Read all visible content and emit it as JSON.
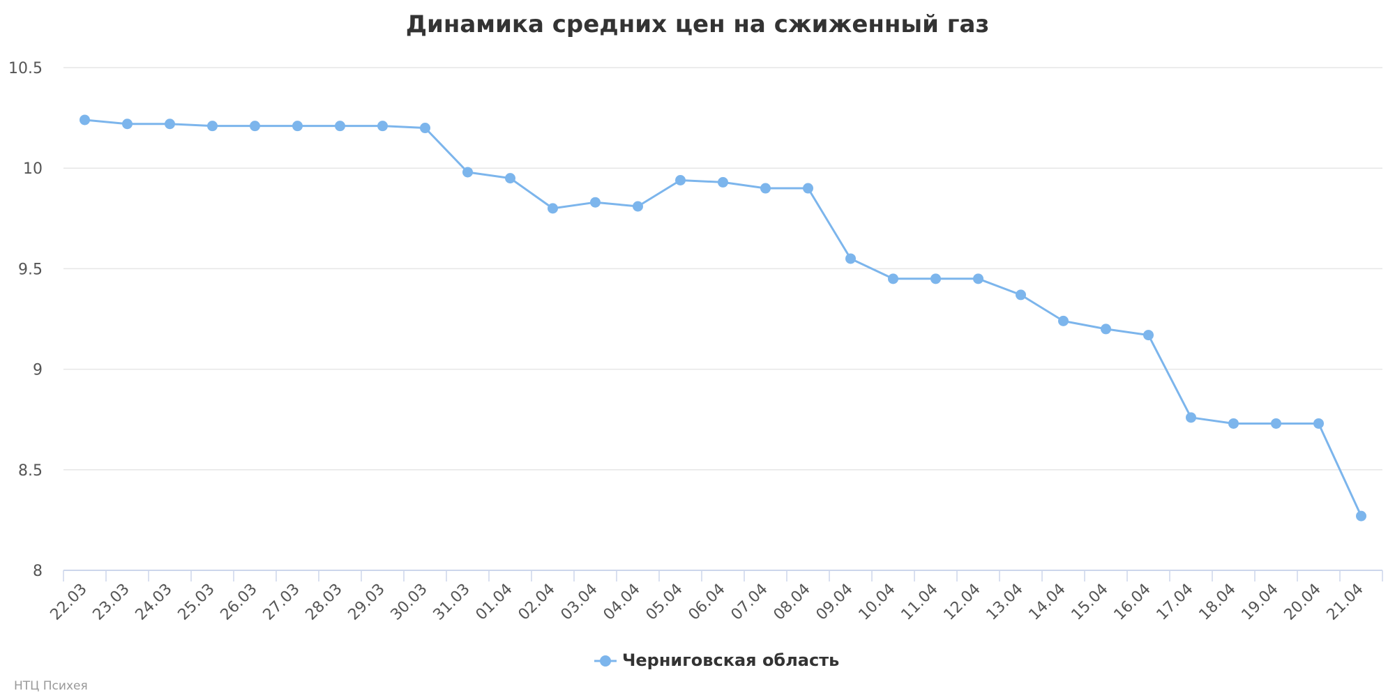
{
  "chart_data": {
    "type": "line",
    "title": "Динамика средних цен на сжиженный газ",
    "xlabel": "",
    "ylabel": "",
    "categories": [
      "22.03",
      "23.03",
      "24.03",
      "25.03",
      "26.03",
      "27.03",
      "28.03",
      "29.03",
      "30.03",
      "31.03",
      "01.04",
      "02.04",
      "03.04",
      "04.04",
      "05.04",
      "06.04",
      "07.04",
      "08.04",
      "09.04",
      "10.04",
      "11.04",
      "12.04",
      "13.04",
      "14.04",
      "15.04",
      "16.04",
      "17.04",
      "18.04",
      "19.04",
      "20.04",
      "21.04"
    ],
    "series": [
      {
        "name": "Черниговская область",
        "color": "#7cb5ec",
        "values": [
          10.24,
          10.22,
          10.22,
          10.21,
          10.21,
          10.21,
          10.21,
          10.21,
          10.2,
          9.98,
          9.95,
          9.8,
          9.83,
          9.81,
          9.94,
          9.93,
          9.9,
          9.9,
          9.55,
          9.45,
          9.45,
          9.45,
          9.37,
          9.24,
          9.2,
          9.17,
          8.76,
          8.73,
          8.73,
          8.73,
          8.27
        ]
      }
    ],
    "ylim": [
      8,
      10.5
    ],
    "yticks": [
      "8",
      "8.5",
      "9",
      "9.5",
      "10",
      "10.5"
    ],
    "grid": true,
    "legend_position": "bottom-center"
  },
  "credit": "НТЦ Психея"
}
